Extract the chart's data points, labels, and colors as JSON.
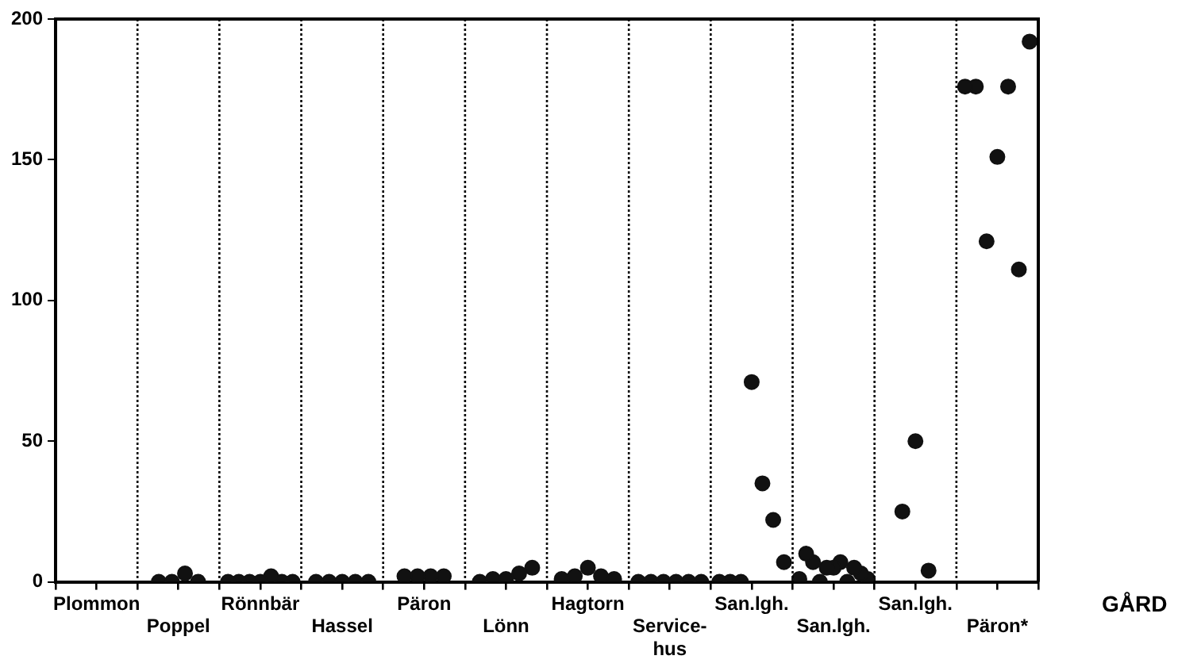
{
  "chart_data": {
    "type": "scatter",
    "xlabel": "GÅRD",
    "categories": [
      "Plommon",
      "Poppel",
      "Rönnbär",
      "Hassel",
      "Päron",
      "Lönn",
      "Hagtorn",
      "Service-hus",
      "San.lgh.",
      "San.lgh.",
      "San.lgh.",
      "Päron*"
    ],
    "ylim": [
      0,
      200
    ],
    "yticks": [
      0,
      50,
      100,
      150,
      200
    ],
    "grid": "x",
    "line_style": "dotted",
    "legend": false,
    "marker": "circle",
    "series": [
      {
        "color": "#111111",
        "values": [
          null,
          0,
          0,
          0,
          2,
          0,
          1,
          0,
          0,
          1,
          25,
          176
        ]
      },
      {
        "color": "#111111",
        "values": [
          null,
          0,
          0,
          0,
          2,
          1,
          2,
          0,
          0,
          10,
          50,
          176
        ]
      },
      {
        "color": "#111111",
        "values": [
          null,
          3,
          0,
          0,
          2,
          1,
          5,
          0,
          0,
          7,
          4,
          121
        ]
      },
      {
        "color": "#111111",
        "values": [
          null,
          0,
          0,
          0,
          2,
          3,
          2,
          0,
          71,
          0,
          null,
          151
        ]
      },
      {
        "color": "#111111",
        "values": [
          null,
          null,
          2,
          0,
          null,
          5,
          1,
          0,
          35,
          5,
          null,
          176
        ]
      },
      {
        "color": "#111111",
        "values": [
          null,
          null,
          0,
          null,
          null,
          null,
          null,
          0,
          22,
          5,
          null,
          111
        ]
      },
      {
        "color": "#111111",
        "values": [
          null,
          null,
          0,
          null,
          null,
          null,
          null,
          null,
          7,
          7,
          null,
          192
        ]
      },
      {
        "color": "#111111",
        "values": [
          null,
          null,
          null,
          null,
          null,
          null,
          null,
          null,
          null,
          0,
          null,
          null
        ]
      },
      {
        "color": "#111111",
        "values": [
          null,
          null,
          null,
          null,
          null,
          null,
          null,
          null,
          null,
          5,
          null,
          null
        ]
      },
      {
        "color": "#111111",
        "values": [
          null,
          null,
          null,
          null,
          null,
          null,
          null,
          null,
          null,
          3,
          null,
          null
        ]
      },
      {
        "color": "#111111",
        "values": [
          null,
          null,
          null,
          null,
          null,
          null,
          null,
          null,
          null,
          1,
          null,
          null
        ]
      }
    ]
  }
}
